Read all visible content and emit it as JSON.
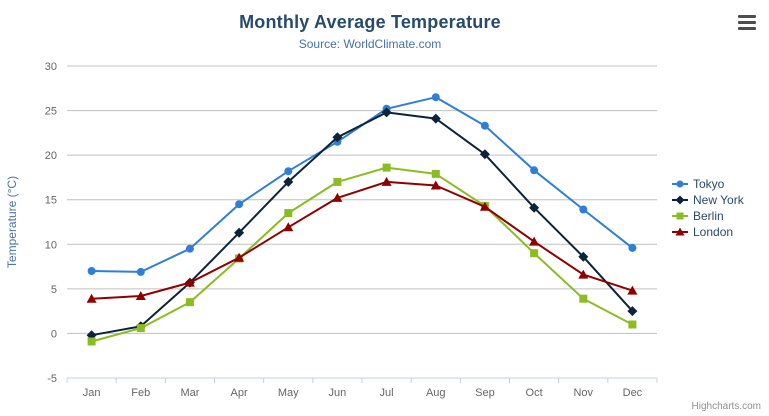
{
  "chart_data": {
    "type": "line",
    "title": "Monthly Average Temperature",
    "subtitle": "Source: WorldClimate.com",
    "categories": [
      "Jan",
      "Feb",
      "Mar",
      "Apr",
      "May",
      "Jun",
      "Jul",
      "Aug",
      "Sep",
      "Oct",
      "Nov",
      "Dec"
    ],
    "xlabel": "",
    "ylabel": "Temperature (°C)",
    "ylim": [
      -5,
      30
    ],
    "ytick_interval": 5,
    "grid": true,
    "legend_position": "right",
    "series": [
      {
        "name": "Tokyo",
        "color": "#2f7ed8",
        "marker": "circle",
        "values": [
          7.0,
          6.9,
          9.5,
          14.5,
          18.2,
          21.5,
          25.2,
          26.5,
          23.3,
          18.3,
          13.9,
          9.6
        ]
      },
      {
        "name": "New York",
        "color": "#0d233a",
        "marker": "diamond",
        "values": [
          -0.2,
          0.8,
          5.7,
          11.3,
          17.0,
          22.0,
          24.8,
          24.1,
          20.1,
          14.1,
          8.6,
          2.5
        ]
      },
      {
        "name": "Berlin",
        "color": "#8bbc21",
        "marker": "square",
        "values": [
          -0.9,
          0.6,
          3.5,
          8.4,
          13.5,
          17.0,
          18.6,
          17.9,
          14.3,
          9.0,
          3.9,
          1.0
        ]
      },
      {
        "name": "London",
        "color": "#910000",
        "marker": "triangle",
        "values": [
          3.9,
          4.2,
          5.7,
          8.5,
          11.9,
          15.2,
          17.0,
          16.6,
          14.2,
          10.3,
          6.6,
          4.8
        ]
      }
    ],
    "colors": {
      "grid_line": "#c0c0c0",
      "axis_line": "#c0d0e0",
      "tick_label": "#666666",
      "axis_title": "#4d759e",
      "title": "#274b6d",
      "subtitle": "#4572a7",
      "legend_text": "#274b6d"
    }
  },
  "icons": {
    "export_menu": "hamburger-menu-icon"
  },
  "credits": "Highcharts.com"
}
